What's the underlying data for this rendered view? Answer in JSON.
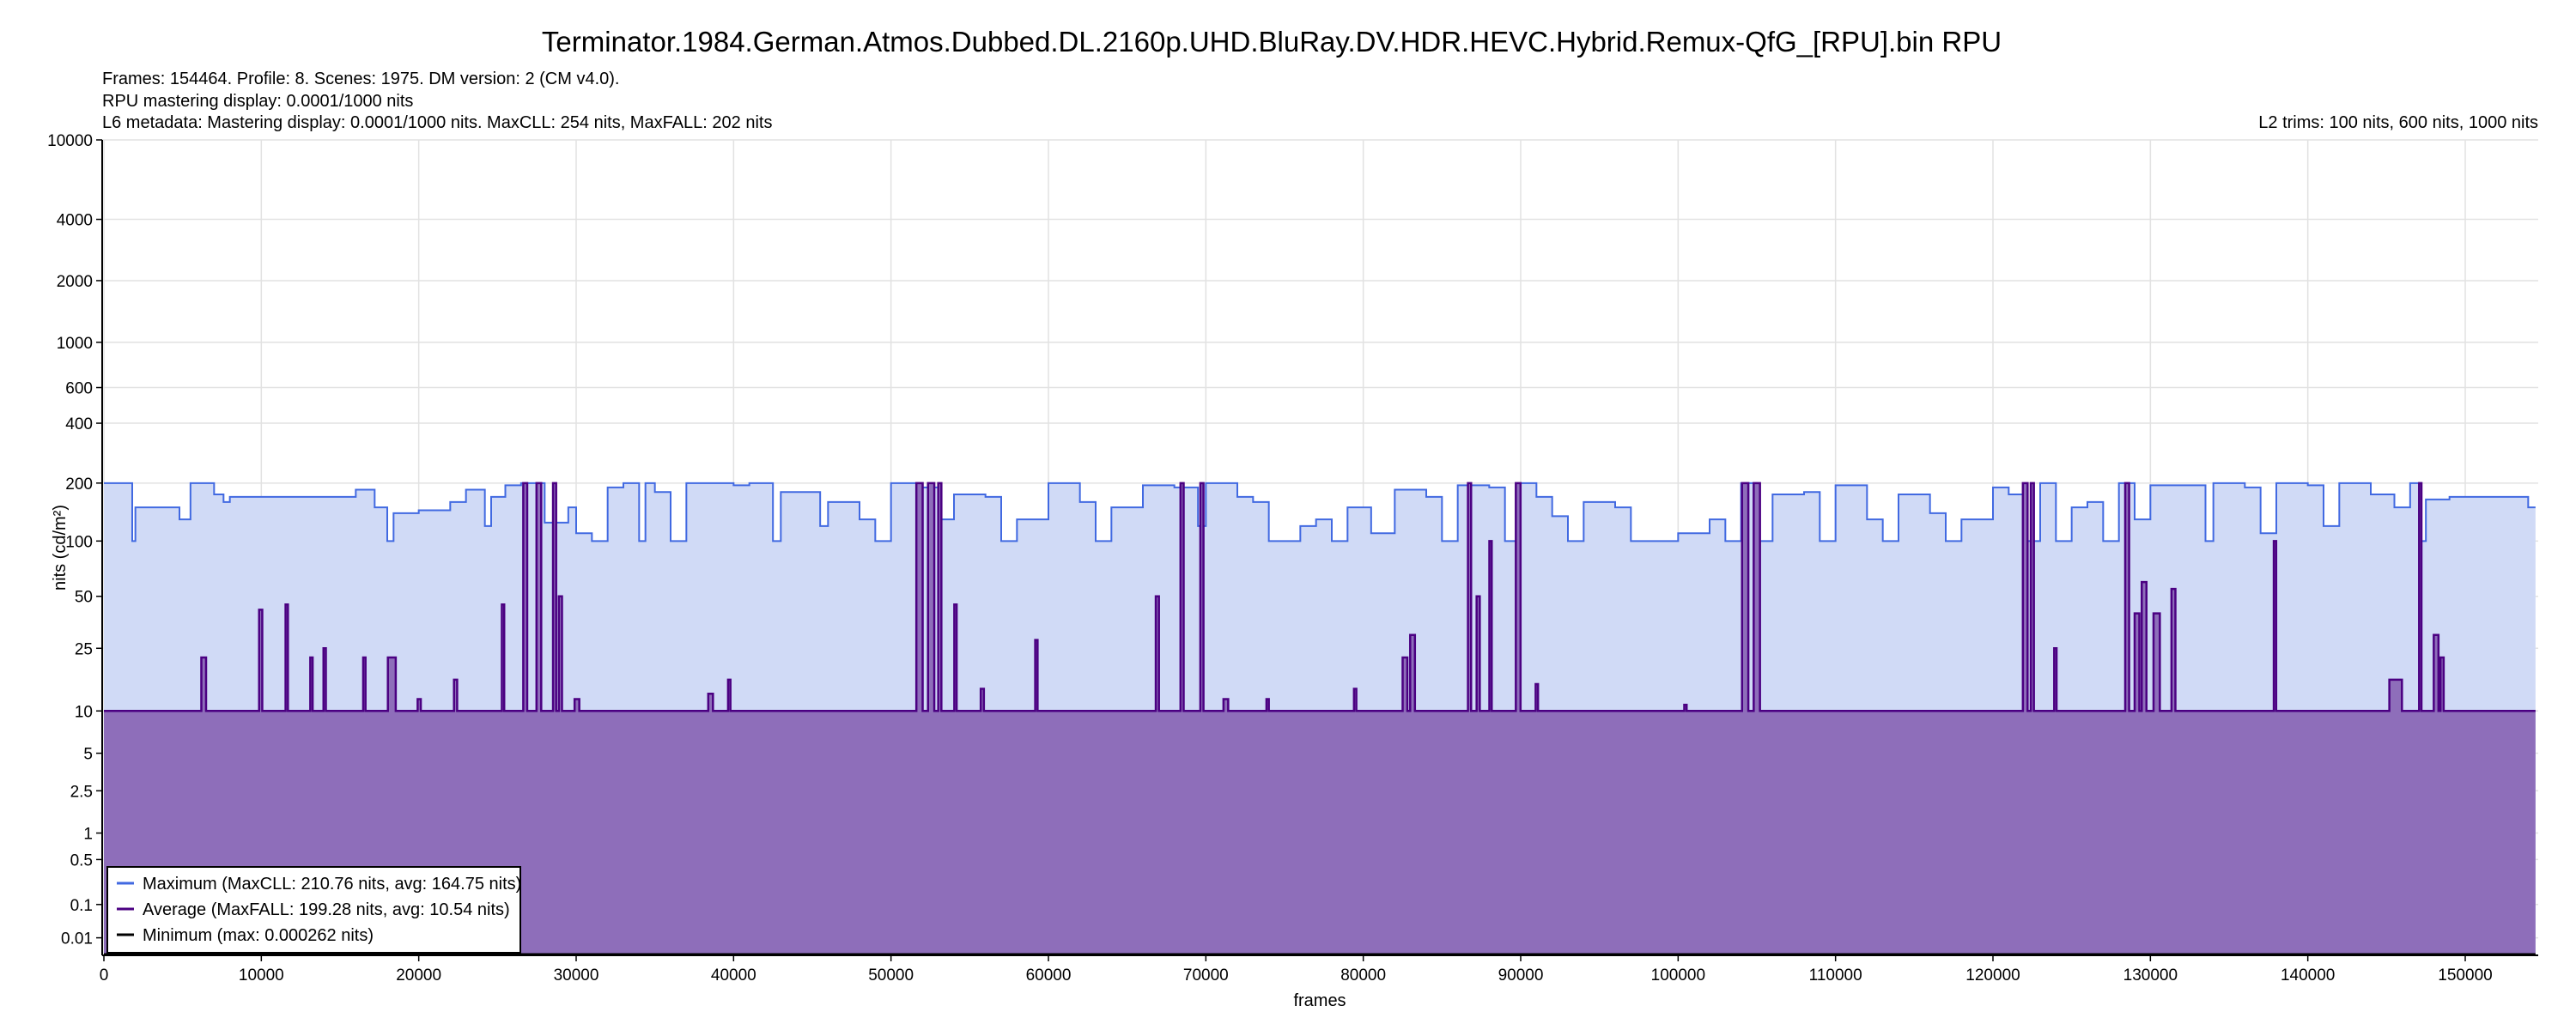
{
  "title": "Terminator.1984.German.Atmos.Dubbed.DL.2160p.UHD.BluRay.DV.HDR.HEVC.Hybrid.Remux-QfG_[RPU].bin RPU",
  "info": [
    "Frames: 154464. Profile: 8. Scenes: 1975. DM version: 2 (CM v4.0).",
    "RPU mastering display: 0.0001/1000 nits",
    "L6 metadata: Mastering display: 0.0001/1000 nits. MaxCLL: 254 nits, MaxFALL: 202 nits"
  ],
  "l2_trims": "L2 trims: 100 nits, 600 nits, 1000 nits",
  "colors": {
    "maximum": "#4169E1",
    "maximum_fill": "#D0DAF6",
    "average": "#4B0082",
    "average_fill": "#8E6EBA",
    "minimum": "#000000"
  },
  "chart_data": {
    "type": "area",
    "xlabel": "frames",
    "ylabel": "nits (cd/m²)",
    "xlim": [
      0,
      154464
    ],
    "ylim": [
      0,
      10000
    ],
    "y_scale": "PQ",
    "grid": true,
    "legend_position": "bottom-left",
    "x_ticks": [
      0,
      10000,
      20000,
      30000,
      40000,
      50000,
      60000,
      70000,
      80000,
      90000,
      100000,
      110000,
      120000,
      130000,
      140000,
      150000
    ],
    "y_ticks": [
      10000,
      4000,
      2000,
      1000,
      600,
      400,
      200,
      100,
      50,
      25,
      10,
      5,
      2.5,
      1,
      0.5,
      0.1,
      0.01
    ],
    "y_tick_labels": [
      "10000",
      "4000",
      "2000",
      "1000",
      "600",
      "400",
      "200",
      "100",
      "50",
      "25",
      "10",
      "5",
      "2.5",
      "1",
      "0.5",
      "0.1",
      "0.01"
    ],
    "series": [
      {
        "name": "Maximum (MaxCLL: 210.76 nits, avg: 164.75 nits)",
        "steps": [
          [
            0,
            200
          ],
          [
            1800,
            100
          ],
          [
            2000,
            150
          ],
          [
            4800,
            130
          ],
          [
            5500,
            200
          ],
          [
            7000,
            175
          ],
          [
            7600,
            160
          ],
          [
            8000,
            170
          ],
          [
            15000,
            170
          ],
          [
            16000,
            185
          ],
          [
            17200,
            150
          ],
          [
            18000,
            100
          ],
          [
            18400,
            140
          ],
          [
            20000,
            145
          ],
          [
            22000,
            160
          ],
          [
            23000,
            185
          ],
          [
            24200,
            120
          ],
          [
            24600,
            170
          ],
          [
            25500,
            195
          ],
          [
            26500,
            200
          ],
          [
            28000,
            125
          ],
          [
            29500,
            150
          ],
          [
            30000,
            110
          ],
          [
            31000,
            100
          ],
          [
            32000,
            190
          ],
          [
            33000,
            200
          ],
          [
            34000,
            100
          ],
          [
            34400,
            200
          ],
          [
            35000,
            180
          ],
          [
            36000,
            100
          ],
          [
            37000,
            200
          ],
          [
            40000,
            195
          ],
          [
            41000,
            200
          ],
          [
            42500,
            100
          ],
          [
            43000,
            180
          ],
          [
            44000,
            180
          ],
          [
            45500,
            120
          ],
          [
            46000,
            160
          ],
          [
            48000,
            130
          ],
          [
            49000,
            100
          ],
          [
            50000,
            200
          ],
          [
            52000,
            190
          ],
          [
            53000,
            130
          ],
          [
            54000,
            175
          ],
          [
            56000,
            170
          ],
          [
            57000,
            100
          ],
          [
            58000,
            130
          ],
          [
            60000,
            200
          ],
          [
            62000,
            160
          ],
          [
            63000,
            100
          ],
          [
            64000,
            150
          ],
          [
            66000,
            195
          ],
          [
            68000,
            190
          ],
          [
            69500,
            120
          ],
          [
            70000,
            200
          ],
          [
            72000,
            170
          ],
          [
            73000,
            160
          ],
          [
            74000,
            100
          ],
          [
            76000,
            120
          ],
          [
            77000,
            130
          ],
          [
            78000,
            100
          ],
          [
            79000,
            150
          ],
          [
            80500,
            110
          ],
          [
            82000,
            185
          ],
          [
            84000,
            170
          ],
          [
            85000,
            100
          ],
          [
            86000,
            195
          ],
          [
            88000,
            190
          ],
          [
            89000,
            100
          ],
          [
            90000,
            200
          ],
          [
            91000,
            170
          ],
          [
            92000,
            135
          ],
          [
            93000,
            100
          ],
          [
            94000,
            160
          ],
          [
            96000,
            150
          ],
          [
            97000,
            100
          ],
          [
            99000,
            100
          ],
          [
            100000,
            110
          ],
          [
            102000,
            130
          ],
          [
            103000,
            100
          ],
          [
            104000,
            200
          ],
          [
            105000,
            100
          ],
          [
            106000,
            175
          ],
          [
            108000,
            180
          ],
          [
            109000,
            100
          ],
          [
            110000,
            195
          ],
          [
            112000,
            130
          ],
          [
            113000,
            100
          ],
          [
            114000,
            175
          ],
          [
            116000,
            140
          ],
          [
            117000,
            100
          ],
          [
            118000,
            130
          ],
          [
            120000,
            190
          ],
          [
            121000,
            175
          ],
          [
            122000,
            100
          ],
          [
            123000,
            200
          ],
          [
            124000,
            100
          ],
          [
            125000,
            150
          ],
          [
            126000,
            160
          ],
          [
            127000,
            100
          ],
          [
            128000,
            200
          ],
          [
            129000,
            130
          ],
          [
            130000,
            195
          ],
          [
            132000,
            195
          ],
          [
            133500,
            100
          ],
          [
            134000,
            200
          ],
          [
            136000,
            190
          ],
          [
            137000,
            110
          ],
          [
            138000,
            200
          ],
          [
            140000,
            195
          ],
          [
            141000,
            120
          ],
          [
            142000,
            200
          ],
          [
            144000,
            175
          ],
          [
            145500,
            150
          ],
          [
            146500,
            200
          ],
          [
            147200,
            100
          ],
          [
            147500,
            165
          ],
          [
            149000,
            170
          ],
          [
            154000,
            150
          ],
          [
            154464,
            150
          ]
        ]
      },
      {
        "name": "Average (MaxFALL: 199.28 nits, avg: 10.54 nits)",
        "baseline": 10,
        "spikes": [
          [
            6190,
            22,
            300
          ],
          [
            9860,
            42,
            200
          ],
          [
            11540,
            45,
            150
          ],
          [
            13110,
            22,
            150
          ],
          [
            13950,
            25,
            150
          ],
          [
            16470,
            22,
            150
          ],
          [
            18040,
            22,
            500
          ],
          [
            19930,
            12,
            200
          ],
          [
            22240,
            16,
            200
          ],
          [
            25280,
            45,
            150
          ],
          [
            26640,
            200,
            250
          ],
          [
            27480,
            200,
            300
          ],
          [
            28530,
            200,
            200
          ],
          [
            28900,
            50,
            200
          ],
          [
            29900,
            12,
            300
          ],
          [
            38390,
            13,
            300
          ],
          [
            39650,
            16,
            150
          ],
          [
            51610,
            200,
            400
          ],
          [
            52350,
            200,
            400
          ],
          [
            53000,
            200,
            200
          ],
          [
            54020,
            45,
            150
          ],
          [
            55700,
            14,
            200
          ],
          [
            59160,
            28,
            150
          ],
          [
            66820,
            50,
            200
          ],
          [
            68390,
            200,
            200
          ],
          [
            69650,
            200,
            200
          ],
          [
            71120,
            12,
            300
          ],
          [
            73850,
            12,
            150
          ],
          [
            79410,
            14,
            150
          ],
          [
            82500,
            22,
            300
          ],
          [
            82980,
            30,
            300
          ],
          [
            86650,
            200,
            200
          ],
          [
            87200,
            50,
            200
          ],
          [
            88010,
            100,
            150
          ],
          [
            89690,
            200,
            300
          ],
          [
            90950,
            15,
            150
          ],
          [
            100390,
            11,
            150
          ],
          [
            104060,
            200,
            400
          ],
          [
            104800,
            200,
            400
          ],
          [
            121900,
            200,
            300
          ],
          [
            122400,
            200,
            200
          ],
          [
            123890,
            25,
            150
          ],
          [
            128400,
            200,
            250
          ],
          [
            129000,
            40,
            300
          ],
          [
            129450,
            60,
            300
          ],
          [
            130200,
            40,
            400
          ],
          [
            131340,
            55,
            250
          ],
          [
            137840,
            100,
            150
          ],
          [
            145180,
            16,
            800
          ],
          [
            147070,
            200,
            150
          ],
          [
            148000,
            30,
            300
          ],
          [
            148430,
            22,
            200
          ]
        ]
      },
      {
        "name": "Minimum (max: 0.000262 nits)",
        "value": 5e-05
      }
    ]
  }
}
